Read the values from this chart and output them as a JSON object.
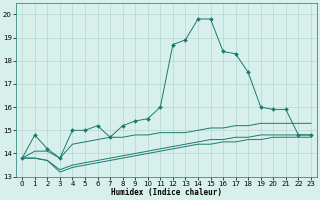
{
  "xlabel": "Humidex (Indice chaleur)",
  "x": [
    0,
    1,
    2,
    3,
    4,
    5,
    6,
    7,
    8,
    9,
    10,
    11,
    12,
    13,
    14,
    15,
    16,
    17,
    18,
    19,
    20,
    21,
    22,
    23
  ],
  "line1": [
    13.8,
    14.8,
    14.2,
    13.8,
    15.0,
    15.0,
    15.2,
    14.7,
    15.2,
    15.4,
    15.5,
    16.0,
    18.7,
    18.9,
    19.8,
    19.8,
    18.4,
    18.3,
    17.5,
    16.0,
    15.9,
    15.9,
    14.8,
    14.8
  ],
  "line2": [
    13.8,
    14.1,
    14.1,
    13.8,
    14.4,
    14.5,
    14.6,
    14.7,
    14.7,
    14.8,
    14.8,
    14.9,
    14.9,
    14.9,
    15.0,
    15.1,
    15.1,
    15.2,
    15.2,
    15.3,
    15.3,
    15.3,
    15.3,
    15.3
  ],
  "line3": [
    13.8,
    13.8,
    13.7,
    13.3,
    13.5,
    13.6,
    13.7,
    13.8,
    13.9,
    14.0,
    14.1,
    14.2,
    14.3,
    14.4,
    14.5,
    14.6,
    14.6,
    14.7,
    14.7,
    14.8,
    14.8,
    14.8,
    14.8,
    14.8
  ],
  "line4": [
    13.8,
    13.8,
    13.7,
    13.2,
    13.4,
    13.5,
    13.6,
    13.7,
    13.8,
    13.9,
    14.0,
    14.1,
    14.2,
    14.3,
    14.4,
    14.4,
    14.5,
    14.5,
    14.6,
    14.6,
    14.7,
    14.7,
    14.7,
    14.7
  ],
  "ylim": [
    13,
    20.5
  ],
  "xlim": [
    -0.5,
    23.5
  ],
  "yticks": [
    13,
    14,
    15,
    16,
    17,
    18,
    19,
    20
  ],
  "xticks": [
    0,
    1,
    2,
    3,
    4,
    5,
    6,
    7,
    8,
    9,
    10,
    11,
    12,
    13,
    14,
    15,
    16,
    17,
    18,
    19,
    20,
    21,
    22,
    23
  ],
  "line_color": "#1a7a6e",
  "bg_color": "#d8f0ec",
  "grid_color": "#b0cfc8",
  "marker_size": 2.0
}
